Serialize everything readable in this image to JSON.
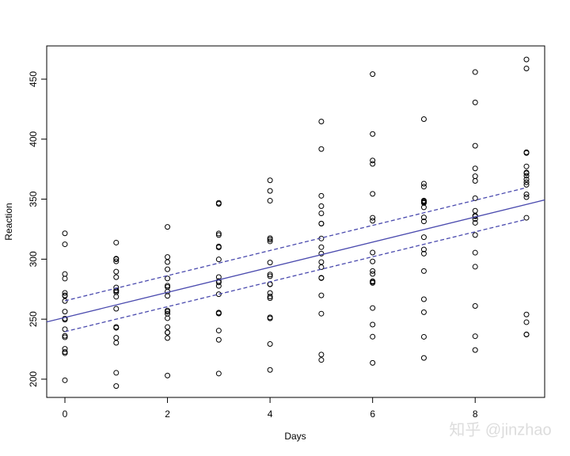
{
  "chart_data": {
    "type": "scatter",
    "x_label": "Days",
    "y_label": "Reaction",
    "xlim": [
      -0.355,
      9.355
    ],
    "ylim": [
      184.8,
      477.7
    ],
    "xticks": [
      0,
      2,
      4,
      6,
      8
    ],
    "yticks": [
      200,
      250,
      300,
      350,
      400,
      450
    ],
    "point_color": "#000000",
    "x": [
      0,
      1,
      2,
      3,
      4,
      5,
      6,
      7,
      8,
      9,
      0,
      1,
      2,
      3,
      4,
      5,
      6,
      7,
      8,
      9,
      0,
      1,
      2,
      3,
      4,
      5,
      6,
      7,
      8,
      9,
      0,
      1,
      2,
      3,
      4,
      5,
      6,
      7,
      8,
      9,
      0,
      1,
      2,
      3,
      4,
      5,
      6,
      7,
      8,
      9,
      0,
      1,
      2,
      3,
      4,
      5,
      6,
      7,
      8,
      9,
      0,
      1,
      2,
      3,
      4,
      5,
      6,
      7,
      8,
      9,
      0,
      1,
      2,
      3,
      4,
      5,
      6,
      7,
      8,
      9,
      0,
      1,
      2,
      3,
      4,
      5,
      6,
      7,
      8,
      9,
      0,
      1,
      2,
      3,
      4,
      5,
      6,
      7,
      8,
      9,
      0,
      1,
      2,
      3,
      4,
      5,
      6,
      7,
      8,
      9,
      0,
      1,
      2,
      3,
      4,
      5,
      6,
      7,
      8,
      9,
      0,
      1,
      2,
      3,
      4,
      5,
      6,
      7,
      8,
      9,
      0,
      1,
      2,
      3,
      4,
      5,
      6,
      7,
      8,
      9,
      0,
      1,
      2,
      3,
      4,
      5,
      6,
      7,
      8,
      9,
      0,
      1,
      2,
      3,
      4,
      5,
      6,
      7,
      8,
      9,
      0,
      1,
      2,
      3,
      4,
      5,
      6,
      7,
      8,
      9,
      0,
      1,
      2,
      3,
      4,
      5,
      6,
      7,
      8,
      9
    ],
    "values": [
      249.6,
      258.7,
      250.8,
      321.4,
      356.9,
      414.7,
      382.2,
      290.1,
      430.6,
      466.4,
      222.7,
      205.3,
      203.0,
      204.7,
      207.7,
      216.0,
      213.6,
      217.7,
      224.3,
      237.3,
      199.1,
      194.3,
      234.3,
      232.8,
      229.3,
      220.5,
      235.4,
      255.8,
      261.0,
      247.5,
      321.5,
      300.4,
      283.9,
      285.1,
      285.8,
      297.6,
      280.2,
      318.3,
      305.4,
      354.0,
      287.6,
      285.0,
      301.8,
      320.1,
      316.3,
      293.3,
      290.1,
      334.8,
      293.7,
      371.6,
      234.9,
      242.8,
      273.0,
      309.8,
      317.5,
      310.0,
      454.2,
      346.8,
      330.3,
      253.9,
      283.8,
      289.6,
      276.8,
      299.8,
      297.2,
      338.2,
      332.0,
      348.8,
      333.4,
      362.0,
      265.1,
      276.4,
      243.4,
      254.7,
      279.0,
      284.2,
      305.5,
      331.5,
      335.7,
      377.3,
      241.6,
      274.0,
      254.5,
      270.8,
      251.5,
      254.6,
      245.5,
      235.3,
      235.8,
      237.2,
      312.4,
      313.8,
      291.6,
      346.1,
      365.7,
      391.8,
      404.3,
      416.7,
      455.9,
      458.9,
      236.1,
      230.3,
      238.9,
      254.9,
      250.7,
      269.8,
      281.6,
      308.1,
      336.3,
      351.7,
      256.3,
      243.5,
      256.2,
      255.5,
      268.9,
      329.7,
      379.4,
      362.9,
      394.5,
      389.1,
      250.5,
      300.0,
      269.4,
      280.6,
      271.8,
      304.6,
      287.7,
      266.6,
      320.1,
      334.5,
      221.7,
      298.2,
      326.9,
      346.9,
      348.7,
      352.8,
      354.4,
      360.4,
      375.6,
      388.5,
      271.9,
      268.7,
      257.2,
      277.7,
      314.8,
      317.2,
      298.1,
      348.1,
      340.3,
      366.5,
      225.3,
      234.5,
      238.9,
      240.5,
      267.5,
      344.2,
      281.1,
      347.6,
      365.2,
      372.2,
      269.4,
      273.5,
      297.6,
      310.6,
      287.2,
      329.6,
      334.5,
      343.2,
      369.1,
      364.1,
      269.8,
      272.4,
      277.9,
      281.8,
      279.2,
      284.5,
      259.3,
      304.6,
      350.8,
      369.5
    ],
    "fit": {
      "intercept": 251.4,
      "slope": 10.47,
      "color": "#4a4aae"
    },
    "bands": {
      "x": [
        0,
        9
      ],
      "upper": [
        265.3,
        359.6
      ],
      "lower": [
        239.6,
        333.2
      ],
      "color": "#4a4aae"
    },
    "watermark": "知乎 @jinzhao"
  }
}
